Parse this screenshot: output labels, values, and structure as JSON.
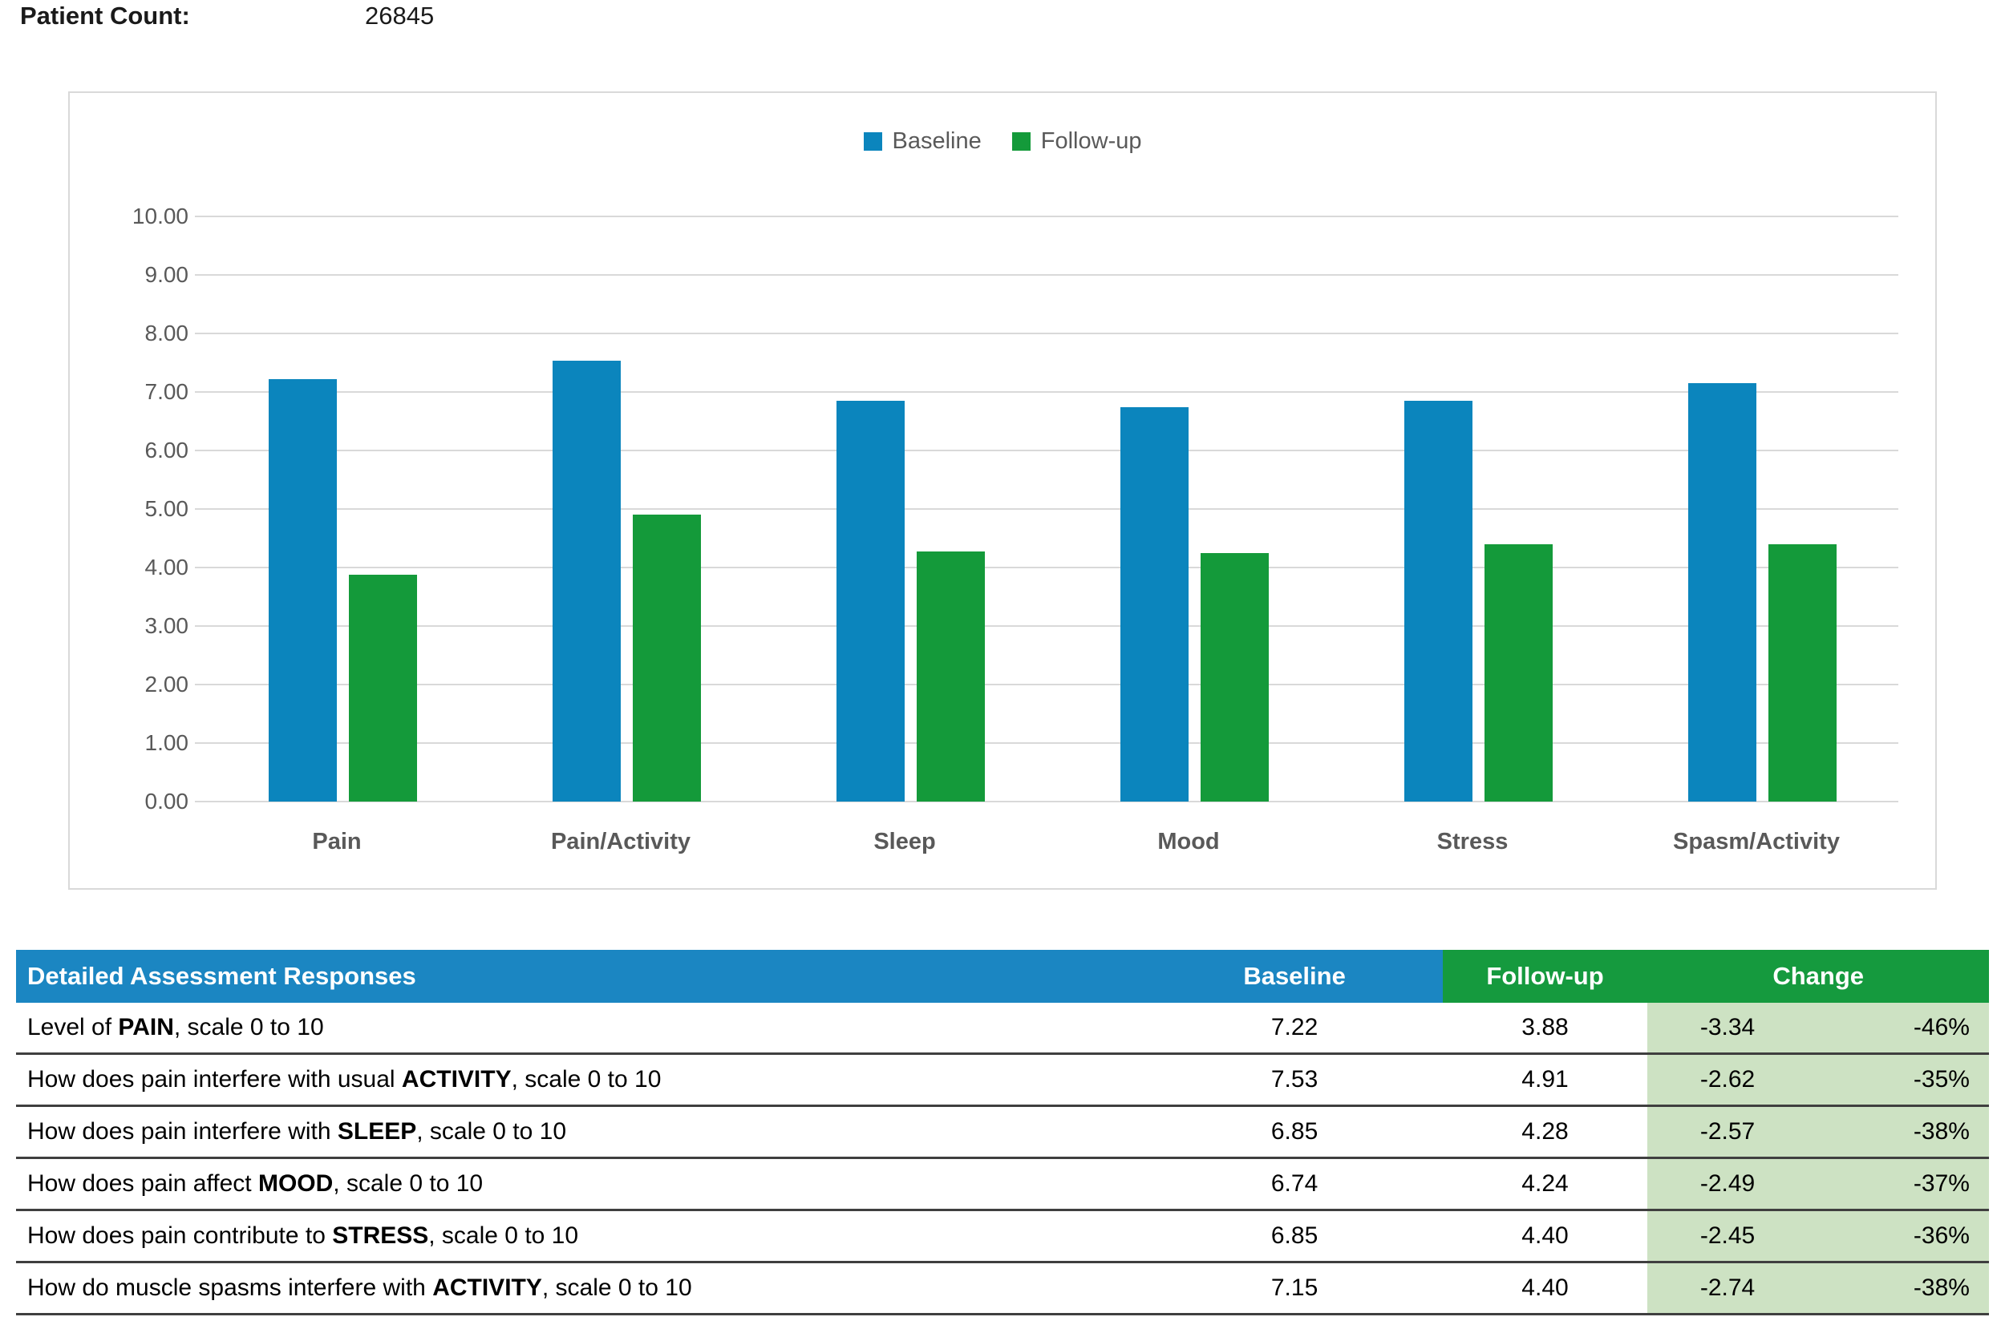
{
  "header": {
    "label": "Patient Count:",
    "value": "26845"
  },
  "colors": {
    "bar_blue": "#0b85bd",
    "bar_green": "#149a3a",
    "header_blue": "#1b86c2",
    "header_green": "#159a3e",
    "change_bg": "#cde2c3",
    "gridline": "#d9d9d9",
    "axis_text": "#595959",
    "row_border": "#3f3f3f"
  },
  "chart_data": {
    "type": "bar",
    "title": "",
    "xlabel": "",
    "ylabel": "",
    "categories": [
      "Pain",
      "Pain/Activity",
      "Sleep",
      "Mood",
      "Stress",
      "Spasm/Activity"
    ],
    "series": [
      {
        "name": "Baseline",
        "color": "#0b85bd",
        "values": [
          7.22,
          7.53,
          6.85,
          6.74,
          6.85,
          7.15
        ]
      },
      {
        "name": "Follow-up",
        "color": "#149a3a",
        "values": [
          3.88,
          4.91,
          4.28,
          4.24,
          4.4,
          4.4
        ]
      }
    ],
    "ylim": [
      0,
      10
    ],
    "y_tick_step": 1,
    "y_ticks": [
      "10.00",
      "9.00",
      "8.00",
      "7.00",
      "6.00",
      "5.00",
      "4.00",
      "3.00",
      "2.00",
      "1.00",
      "0.00"
    ],
    "grid": true,
    "legend_position": "top-center"
  },
  "table": {
    "title": "Detailed Assessment Responses",
    "baseline_header": "Baseline",
    "followup_header": "Follow-up",
    "change_header": "Change",
    "rows": [
      {
        "q_pre": "Level of ",
        "q_bold": "PAIN",
        "q_post": ", scale 0 to 10",
        "baseline": "7.22",
        "followup": "3.88",
        "change": "-3.34",
        "change_pct": "-46%"
      },
      {
        "q_pre": "How does pain interfere with usual ",
        "q_bold": "ACTIVITY",
        "q_post": ", scale 0 to 10",
        "baseline": "7.53",
        "followup": "4.91",
        "change": "-2.62",
        "change_pct": "-35%"
      },
      {
        "q_pre": "How does pain interfere with ",
        "q_bold": "SLEEP",
        "q_post": ", scale 0 to 10",
        "baseline": "6.85",
        "followup": "4.28",
        "change": "-2.57",
        "change_pct": "-38%"
      },
      {
        "q_pre": "How does pain affect ",
        "q_bold": "MOOD",
        "q_post": ", scale 0 to 10",
        "baseline": "6.74",
        "followup": "4.24",
        "change": "-2.49",
        "change_pct": "-37%"
      },
      {
        "q_pre": "How does pain contribute to ",
        "q_bold": "STRESS",
        "q_post": ", scale 0 to 10",
        "baseline": "6.85",
        "followup": "4.40",
        "change": "-2.45",
        "change_pct": "-36%"
      },
      {
        "q_pre": "How do muscle spasms interfere with ",
        "q_bold": "ACTIVITY",
        "q_post": ", scale 0 to 10",
        "baseline": "7.15",
        "followup": "4.40",
        "change": "-2.74",
        "change_pct": "-38%"
      }
    ]
  }
}
